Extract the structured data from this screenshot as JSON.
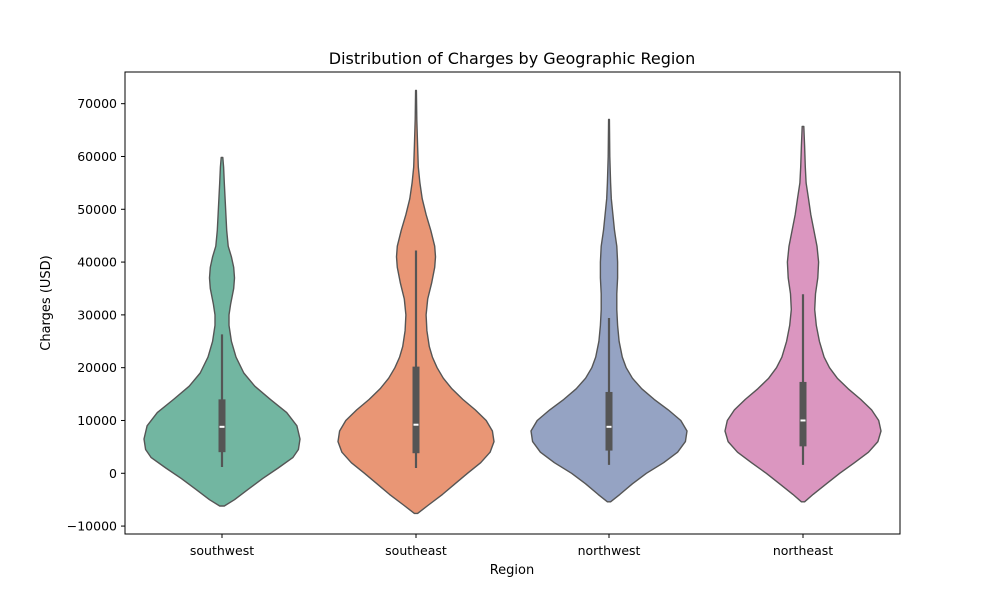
{
  "chart_data": {
    "type": "violin",
    "title": "Distribution of Charges by Geographic Region",
    "xlabel": "Region",
    "ylabel": "Charges (USD)",
    "ylim": [
      -11500,
      76000
    ],
    "yticks": [
      -10000,
      0,
      10000,
      20000,
      30000,
      40000,
      50000,
      60000,
      70000
    ],
    "ytick_labels": [
      "−10000",
      "0",
      "10000",
      "20000",
      "30000",
      "40000",
      "50000",
      "60000",
      "70000"
    ],
    "categories": [
      "southwest",
      "southeast",
      "northwest",
      "northeast"
    ],
    "colors": [
      "#72b6a1",
      "#e99675",
      "#95a3c3",
      "#db96c0"
    ],
    "grid": false,
    "violins": [
      {
        "category": "southwest",
        "color": "#72b6a1",
        "box": {
          "whisker_low": 1200,
          "q1": 4000,
          "median": 8800,
          "q3": 14000,
          "whisker_high": 26300
        },
        "profile": [
          [
            -6200,
            0.03
          ],
          [
            -5000,
            0.16
          ],
          [
            -3000,
            0.34
          ],
          [
            -1000,
            0.52
          ],
          [
            1000,
            0.72
          ],
          [
            3000,
            0.91
          ],
          [
            4500,
            0.98
          ],
          [
            6500,
            1.0
          ],
          [
            9000,
            0.96
          ],
          [
            11500,
            0.83
          ],
          [
            14000,
            0.62
          ],
          [
            16500,
            0.42
          ],
          [
            19000,
            0.28
          ],
          [
            22000,
            0.18
          ],
          [
            25000,
            0.12
          ],
          [
            28000,
            0.09
          ],
          [
            30000,
            0.09
          ],
          [
            32000,
            0.11
          ],
          [
            35000,
            0.15
          ],
          [
            37000,
            0.16
          ],
          [
            39000,
            0.15
          ],
          [
            41000,
            0.12
          ],
          [
            43000,
            0.08
          ],
          [
            46000,
            0.06
          ],
          [
            49000,
            0.05
          ],
          [
            52000,
            0.04
          ],
          [
            55000,
            0.03
          ],
          [
            58000,
            0.02
          ],
          [
            59800,
            0.01
          ]
        ]
      },
      {
        "category": "southeast",
        "color": "#e99675",
        "box": {
          "whisker_low": 1000,
          "q1": 3800,
          "median": 9200,
          "q3": 20200,
          "whisker_high": 42200
        },
        "profile": [
          [
            -7600,
            0.02
          ],
          [
            -6000,
            0.16
          ],
          [
            -4000,
            0.34
          ],
          [
            -2000,
            0.5
          ],
          [
            0,
            0.66
          ],
          [
            2000,
            0.83
          ],
          [
            4000,
            0.95
          ],
          [
            6000,
            1.0
          ],
          [
            8000,
            0.98
          ],
          [
            10000,
            0.9
          ],
          [
            12000,
            0.76
          ],
          [
            14000,
            0.6
          ],
          [
            16000,
            0.46
          ],
          [
            18000,
            0.35
          ],
          [
            20000,
            0.27
          ],
          [
            22000,
            0.21
          ],
          [
            24000,
            0.17
          ],
          [
            27000,
            0.14
          ],
          [
            30000,
            0.13
          ],
          [
            33000,
            0.15
          ],
          [
            36000,
            0.2
          ],
          [
            39000,
            0.24
          ],
          [
            41000,
            0.25
          ],
          [
            43000,
            0.24
          ],
          [
            46000,
            0.19
          ],
          [
            49000,
            0.13
          ],
          [
            52000,
            0.08
          ],
          [
            55000,
            0.05
          ],
          [
            58000,
            0.03
          ],
          [
            62000,
            0.02
          ],
          [
            67000,
            0.01
          ],
          [
            72500,
            0.005
          ]
        ]
      },
      {
        "category": "northwest",
        "color": "#95a3c3",
        "box": {
          "whisker_low": 1600,
          "q1": 4300,
          "median": 8800,
          "q3": 15400,
          "whisker_high": 29400
        },
        "profile": [
          [
            -5400,
            0.02
          ],
          [
            -4000,
            0.14
          ],
          [
            -2000,
            0.3
          ],
          [
            0,
            0.48
          ],
          [
            2000,
            0.7
          ],
          [
            4000,
            0.88
          ],
          [
            6000,
            0.98
          ],
          [
            8000,
            1.0
          ],
          [
            10000,
            0.92
          ],
          [
            12000,
            0.76
          ],
          [
            14000,
            0.58
          ],
          [
            16000,
            0.42
          ],
          [
            18000,
            0.3
          ],
          [
            20000,
            0.22
          ],
          [
            22000,
            0.17
          ],
          [
            25000,
            0.13
          ],
          [
            28000,
            0.11
          ],
          [
            31000,
            0.1
          ],
          [
            34000,
            0.1
          ],
          [
            37000,
            0.11
          ],
          [
            40000,
            0.11
          ],
          [
            43000,
            0.1
          ],
          [
            46000,
            0.07
          ],
          [
            49000,
            0.05
          ],
          [
            52000,
            0.03
          ],
          [
            55000,
            0.02
          ],
          [
            60000,
            0.01
          ],
          [
            67000,
            0.005
          ]
        ]
      },
      {
        "category": "northeast",
        "color": "#db96c0",
        "box": {
          "whisker_low": 1600,
          "q1": 5100,
          "median": 10000,
          "q3": 17300,
          "whisker_high": 33900
        },
        "profile": [
          [
            -5400,
            0.02
          ],
          [
            -4000,
            0.13
          ],
          [
            -2000,
            0.3
          ],
          [
            0,
            0.47
          ],
          [
            2000,
            0.66
          ],
          [
            4000,
            0.84
          ],
          [
            6000,
            0.96
          ],
          [
            8000,
            1.0
          ],
          [
            10000,
            0.97
          ],
          [
            12000,
            0.88
          ],
          [
            14000,
            0.74
          ],
          [
            16000,
            0.58
          ],
          [
            18000,
            0.44
          ],
          [
            20000,
            0.34
          ],
          [
            22000,
            0.27
          ],
          [
            25000,
            0.21
          ],
          [
            28000,
            0.17
          ],
          [
            31000,
            0.15
          ],
          [
            34000,
            0.16
          ],
          [
            37000,
            0.19
          ],
          [
            40000,
            0.2
          ],
          [
            43000,
            0.18
          ],
          [
            46000,
            0.14
          ],
          [
            49000,
            0.1
          ],
          [
            52000,
            0.07
          ],
          [
            55000,
            0.04
          ],
          [
            58000,
            0.03
          ],
          [
            62000,
            0.02
          ],
          [
            65700,
            0.01
          ]
        ]
      }
    ]
  }
}
